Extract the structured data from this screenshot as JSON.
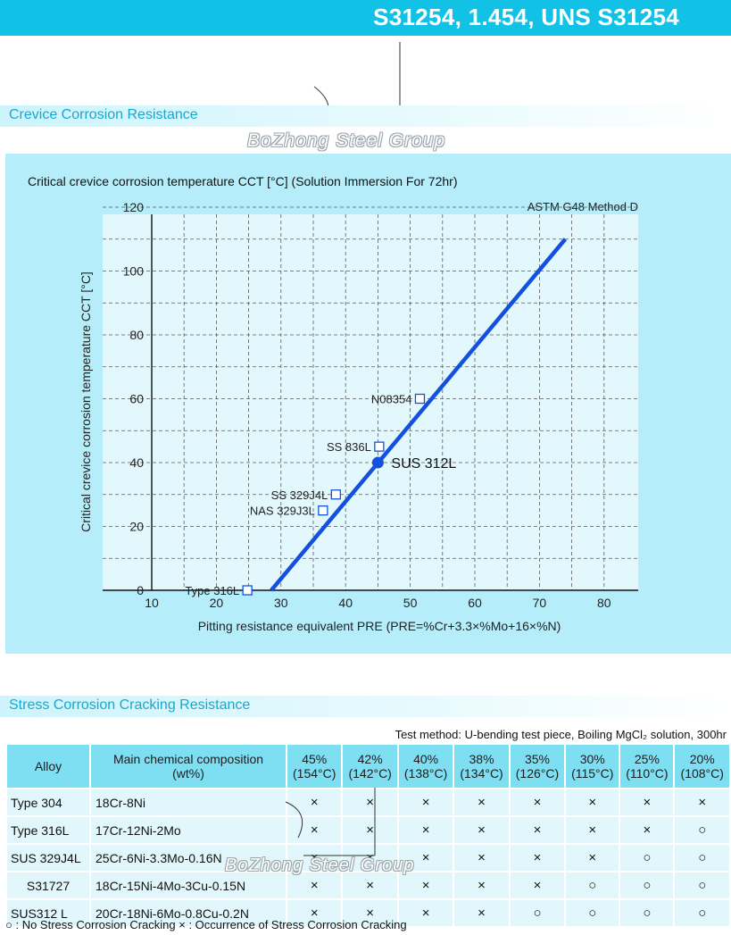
{
  "header": {
    "title": "S31254, 1.454, UNS S31254"
  },
  "watermark": {
    "text": "BoZhong Steel Group"
  },
  "crevice_section": {
    "title": "Crevice Corrosion Resistance"
  },
  "chart_data": {
    "type": "line",
    "title": "Critical crevice corrosion temperature CCT [°C] (Solution Immersion For 72hr)",
    "method": "ASTM G48 Method D",
    "xlabel": "Pitting resistance equivalent  PRE (PRE=%Cr+3.3×%Mo+16×%N)",
    "ylabel": "Critical crevice corrosion temperature CCT [°C]",
    "xlim": [
      10,
      85
    ],
    "ylim": [
      0,
      120
    ],
    "xticks": [
      "10",
      "20",
      "30",
      "40",
      "50",
      "60",
      "70",
      "80"
    ],
    "yticks": [
      "0",
      "20",
      "40",
      "60",
      "80",
      "100",
      "120"
    ],
    "grid": true,
    "trend_line": {
      "x": [
        28.5,
        74
      ],
      "y": [
        0,
        110
      ]
    },
    "highlight": {
      "label": "SUS 312L",
      "x": 45,
      "y": 40
    },
    "points": [
      {
        "label": "Type 316L",
        "x": 24.8,
        "y": 0
      },
      {
        "label": "NAS 329J3L",
        "x": 36.5,
        "y": 25
      },
      {
        "label": "SS 329J4L",
        "x": 38.5,
        "y": 30
      },
      {
        "label": "SS 836L",
        "x": 45.2,
        "y": 45
      },
      {
        "label": "N08354",
        "x": 51.5,
        "y": 60
      }
    ]
  },
  "scc_section": {
    "title": "Stress Corrosion Cracking Resistance",
    "test_method": "Test method: U-bending test piece, Boiling MgCl₂ solution, 300hr",
    "header": {
      "alloy": "Alloy",
      "composition_line1": "Main chemical composition",
      "composition_line2": "(wt%)",
      "conditions": [
        {
          "pct": "45%",
          "temp": "(154°C)"
        },
        {
          "pct": "42%",
          "temp": "(142°C)"
        },
        {
          "pct": "40%",
          "temp": "(138°C)"
        },
        {
          "pct": "38%",
          "temp": "(134°C)"
        },
        {
          "pct": "35%",
          "temp": "(126°C)"
        },
        {
          "pct": "30%",
          "temp": "(115°C)"
        },
        {
          "pct": "25%",
          "temp": "(110°C)"
        },
        {
          "pct": "20%",
          "temp": "(108°C)"
        }
      ]
    },
    "rows": [
      {
        "alloy": "Type 304",
        "composition": "18Cr-8Ni",
        "results": [
          "×",
          "×",
          "×",
          "×",
          "×",
          "×",
          "×",
          "×"
        ]
      },
      {
        "alloy": "Type 316L",
        "composition": "17Cr-12Ni-2Mo",
        "results": [
          "×",
          "×",
          "×",
          "×",
          "×",
          "×",
          "×",
          "○"
        ]
      },
      {
        "alloy": "SUS 329J4L",
        "composition": "25Cr-6Ni-3.3Mo-0.16N",
        "results": [
          "×",
          "×",
          "×",
          "×",
          "×",
          "×",
          "○",
          "○"
        ]
      },
      {
        "alloy": "S31727",
        "composition": "18Cr-15Ni-4Mo-3Cu-0.15N",
        "results": [
          "×",
          "×",
          "×",
          "×",
          "×",
          "○",
          "○",
          "○"
        ]
      },
      {
        "alloy": "SUS312 L",
        "composition": "20Cr-18Ni-6Mo-0.8Cu-0.2N",
        "results": [
          "×",
          "×",
          "×",
          "×",
          "○",
          "○",
          "○",
          "○"
        ]
      }
    ],
    "legend": "○ : No Stress Corrosion Cracking   × : Occurrence of Stress Corrosion Cracking"
  }
}
